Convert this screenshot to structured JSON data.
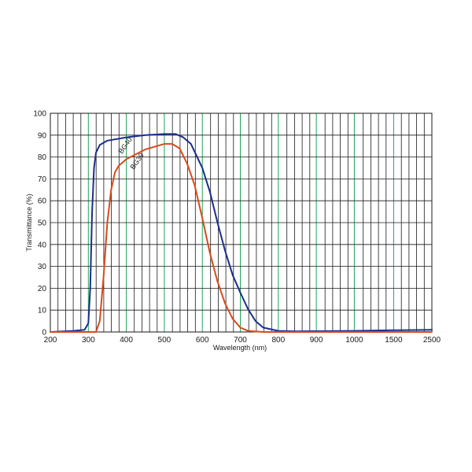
{
  "chart_data": {
    "type": "line",
    "xlabel": "Wavelength (nm)",
    "ylabel": "Transmittance (%)",
    "ylim": [
      0,
      100
    ],
    "y_ticks": [
      0,
      10,
      20,
      30,
      40,
      50,
      60,
      70,
      80,
      90,
      100
    ],
    "x_ticks": [
      "200",
      "300",
      "400",
      "500",
      "600",
      "700",
      "800",
      "900",
      "1000",
      "1500",
      "2500"
    ],
    "x_scale": "piecewise: 200-1000 nm linear, 1000-1500 nm and 1500-2500 nm compressed segments",
    "grid": true,
    "colors": {
      "grid_black": "#1a1a1a",
      "grid_green": "#1fa35a",
      "BG40": "#1b2f8a",
      "BG39": "#d84a1b"
    },
    "series": [
      {
        "name": "BG40",
        "color": "#1b2f8a",
        "points": [
          [
            200,
            0
          ],
          [
            260,
            0.5
          ],
          [
            290,
            1
          ],
          [
            300,
            4
          ],
          [
            305,
            20
          ],
          [
            310,
            55
          ],
          [
            315,
            75
          ],
          [
            320,
            82
          ],
          [
            330,
            85.5
          ],
          [
            350,
            87.5
          ],
          [
            400,
            89
          ],
          [
            450,
            90
          ],
          [
            500,
            90.5
          ],
          [
            530,
            90.5
          ],
          [
            550,
            89
          ],
          [
            570,
            86
          ],
          [
            600,
            75
          ],
          [
            620,
            64
          ],
          [
            640,
            50
          ],
          [
            660,
            37
          ],
          [
            680,
            26
          ],
          [
            700,
            18
          ],
          [
            720,
            10.5
          ],
          [
            740,
            5
          ],
          [
            760,
            2
          ],
          [
            800,
            0.5
          ],
          [
            850,
            0.3
          ],
          [
            1000,
            0.5
          ],
          [
            1500,
            0.8
          ],
          [
            2500,
            1
          ]
        ]
      },
      {
        "name": "BG39",
        "color": "#d84a1b",
        "points": [
          [
            200,
            0
          ],
          [
            300,
            0
          ],
          [
            320,
            0
          ],
          [
            330,
            5
          ],
          [
            340,
            25
          ],
          [
            350,
            50
          ],
          [
            360,
            65
          ],
          [
            370,
            73
          ],
          [
            380,
            76
          ],
          [
            400,
            79
          ],
          [
            450,
            83.5
          ],
          [
            500,
            86
          ],
          [
            520,
            86
          ],
          [
            540,
            84
          ],
          [
            560,
            77
          ],
          [
            580,
            67
          ],
          [
            600,
            52
          ],
          [
            620,
            36
          ],
          [
            640,
            23
          ],
          [
            660,
            13
          ],
          [
            680,
            6
          ],
          [
            700,
            2
          ],
          [
            720,
            0.5
          ],
          [
            760,
            0
          ],
          [
            1000,
            0
          ],
          [
            2500,
            0
          ]
        ]
      }
    ]
  }
}
